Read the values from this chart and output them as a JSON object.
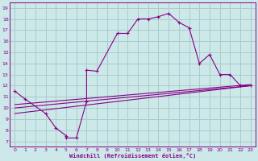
{
  "background_color": "#cce8e8",
  "grid_color": "#aacccc",
  "line_color": "#880088",
  "xlabel": "Windchill (Refroidissement éolien,°C)",
  "xlim": [
    -0.5,
    23.5
  ],
  "ylim": [
    6.5,
    19.5
  ],
  "xticks": [
    0,
    1,
    2,
    3,
    4,
    5,
    6,
    7,
    8,
    9,
    10,
    11,
    12,
    13,
    14,
    15,
    16,
    17,
    18,
    19,
    20,
    21,
    22,
    23
  ],
  "yticks": [
    7,
    8,
    9,
    10,
    11,
    12,
    13,
    14,
    15,
    16,
    17,
    18,
    19
  ],
  "curve1": {
    "x": [
      0,
      1,
      3,
      4,
      5,
      5,
      6,
      7,
      7,
      8,
      10,
      11,
      12,
      13,
      14,
      15,
      16,
      17,
      18,
      19,
      20,
      21,
      22,
      23
    ],
    "y": [
      11.5,
      10.8,
      9.5,
      8.2,
      7.5,
      7.3,
      7.3,
      10.6,
      13.4,
      13.3,
      16.7,
      16.7,
      18.0,
      18.0,
      18.2,
      18.5,
      17.7,
      17.2,
      14.0,
      14.8,
      13.0,
      13.0,
      12.0,
      12.0
    ]
  },
  "line1": {
    "x": [
      0,
      23
    ],
    "y": [
      9.5,
      12.0
    ]
  },
  "line2": {
    "x": [
      0,
      23
    ],
    "y": [
      10.0,
      12.0
    ]
  },
  "line3": {
    "x": [
      0,
      23
    ],
    "y": [
      10.3,
      12.1
    ]
  }
}
